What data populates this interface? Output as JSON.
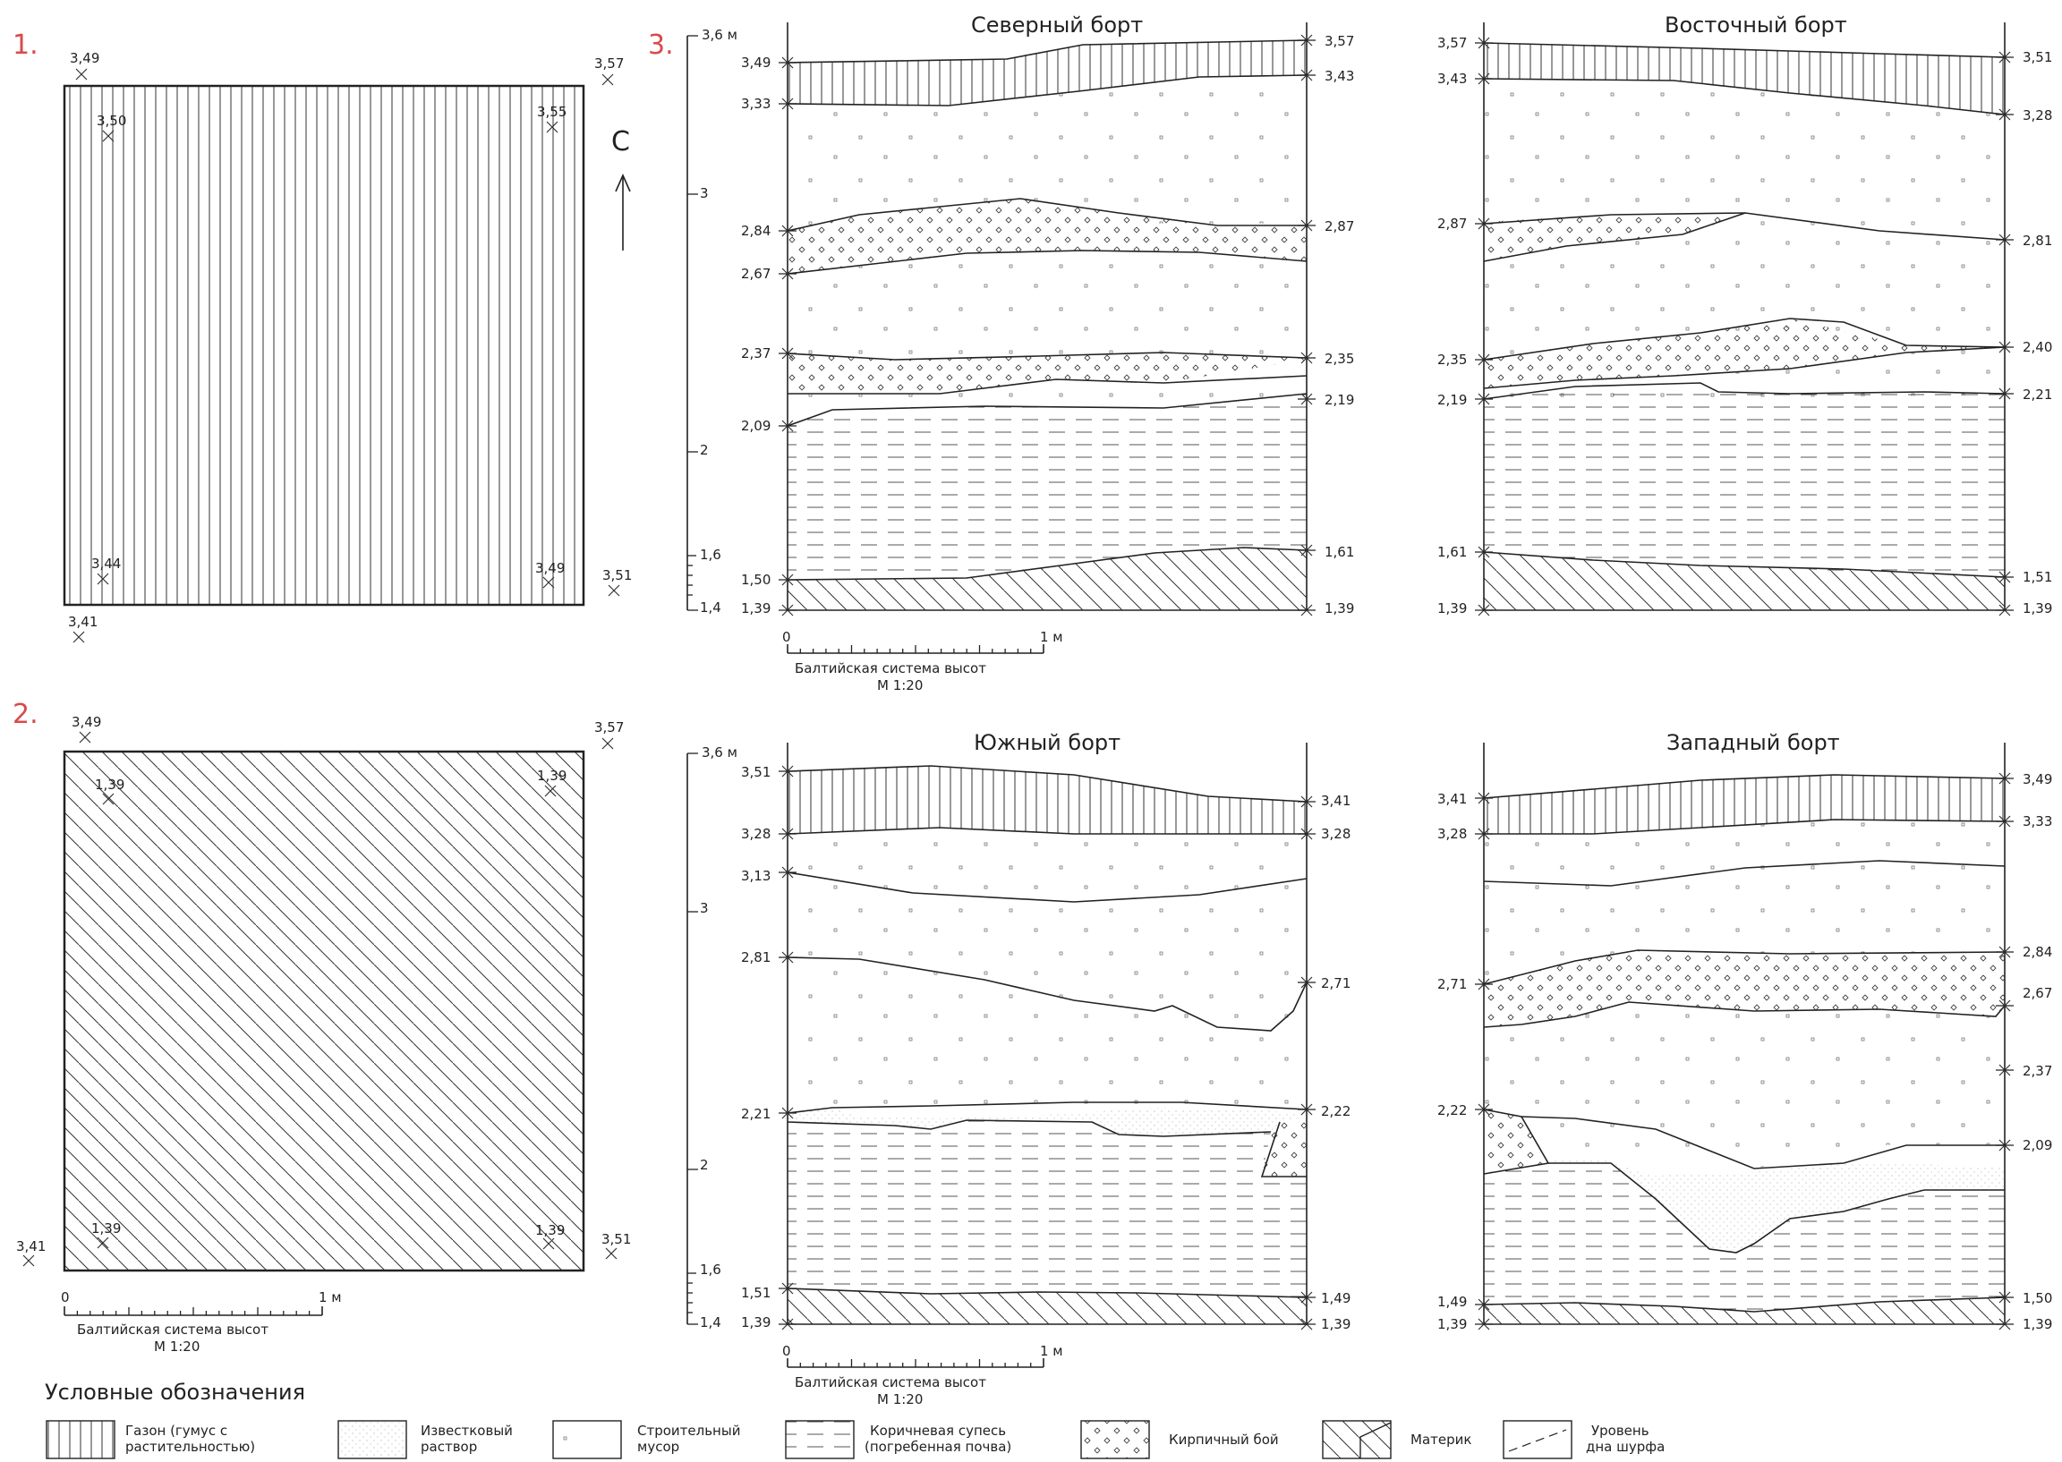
{
  "sections": {
    "s1": "1.",
    "s2": "2.",
    "s3": "3."
  },
  "north": "С",
  "plan1": {
    "tl": "3,49",
    "tl_in": "3,50",
    "tr": "3,57",
    "tr_in": "3,55",
    "bl_in": "3,44",
    "br_in": "3,49",
    "br": "3,51",
    "bl": "3,41"
  },
  "plan2": {
    "tl": "3,49",
    "tl_in": "1,39",
    "tr": "3,57",
    "tr_in": "1,39",
    "bl_in": "1,39",
    "br_in": "1,39",
    "br": "3,51",
    "bl": "3,41"
  },
  "scale": {
    "zero": "0",
    "one": "1 м",
    "system": "Балтийская система высот",
    "ratio": "М 1:20"
  },
  "axis": {
    "top": "3,6 м",
    "three": "3",
    "two": "2",
    "one_six": "1,6",
    "one_four": "1,4"
  },
  "profiles": {
    "north": {
      "title": "Северный борт",
      "left": [
        "3,49",
        "3,33",
        "2,84",
        "2,67",
        "2,37",
        "2,09",
        "1,50",
        "1,39"
      ],
      "right": [
        "3,57",
        "3,43",
        "2,87",
        "2,35",
        "2,19",
        "1,61",
        "1,39"
      ]
    },
    "east": {
      "title": "Восточный борт",
      "left": [
        "3,57",
        "3,43",
        "2,87",
        "2,35",
        "2,19",
        "1,61",
        "1,39"
      ],
      "right": [
        "3,51",
        "3,28",
        "2,81",
        "2,40",
        "2,21",
        "1,51",
        "1,39"
      ]
    },
    "south": {
      "title": "Южный борт",
      "left": [
        "3,51",
        "3,28",
        "3,13",
        "2,81",
        "2,21",
        "1,51",
        "1,39"
      ],
      "right": [
        "3,41",
        "3,28",
        "2,71",
        "2,22",
        "1,49",
        "1,39"
      ]
    },
    "west": {
      "title": "Западный борт",
      "left": [
        "3,41",
        "3,28",
        "2,71",
        "2,22",
        "1,49",
        "1,39"
      ],
      "right": [
        "3,49",
        "3,33",
        "2,84",
        "2,67",
        "2,37",
        "2,09",
        "1,50",
        "1,39"
      ]
    }
  },
  "legend": {
    "title": "Условные обозначения",
    "items": [
      {
        "l1": "Газон (гумус с",
        "l2": "растительностью)"
      },
      {
        "l1": "Известковый",
        "l2": "раствор"
      },
      {
        "l1": "Строительный",
        "l2": "мусор"
      },
      {
        "l1": "Коричневая супесь",
        "l2": "(погребенная почва)"
      },
      {
        "l1": "Кирпичный бой",
        "l2": ""
      },
      {
        "l1": "Материк",
        "l2": ""
      },
      {
        "l1": "Уровень",
        "l2": "дна шурфа"
      }
    ]
  }
}
